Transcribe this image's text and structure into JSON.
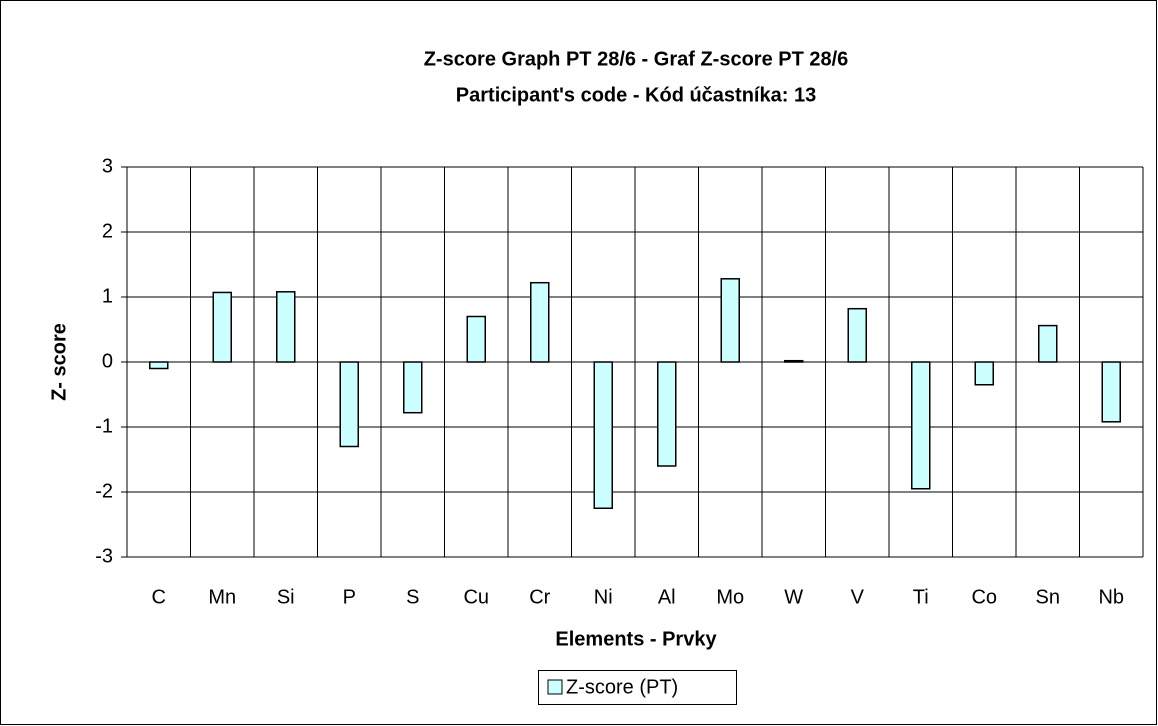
{
  "chart_data": {
    "type": "bar",
    "title": "Z-score Graph PT 28/6 - Graf Z-score PT 28/6",
    "subtitle": "Participant's code - Kód účastníka:  13",
    "x_label": "Elements - Prvky",
    "y_label": "Z- score",
    "categories": [
      "C",
      "Mn",
      "Si",
      "P",
      "S",
      "Cu",
      "Cr",
      "Ni",
      "Al",
      "Mo",
      "W",
      "V",
      "Ti",
      "Co",
      "Sn",
      "Nb"
    ],
    "series": [
      {
        "name": "Z-score (PT)",
        "color": "#ccffff",
        "values": [
          -0.1,
          1.07,
          1.08,
          -1.3,
          -0.78,
          0.7,
          1.22,
          -2.25,
          -1.6,
          1.28,
          0.02,
          0.82,
          -1.95,
          -0.35,
          0.56,
          -0.92
        ]
      }
    ],
    "ylim": [
      -3,
      3
    ],
    "yticks": [
      -3,
      -2,
      -1,
      0,
      1,
      2,
      3
    ],
    "grid": true,
    "legend": "bottom"
  }
}
